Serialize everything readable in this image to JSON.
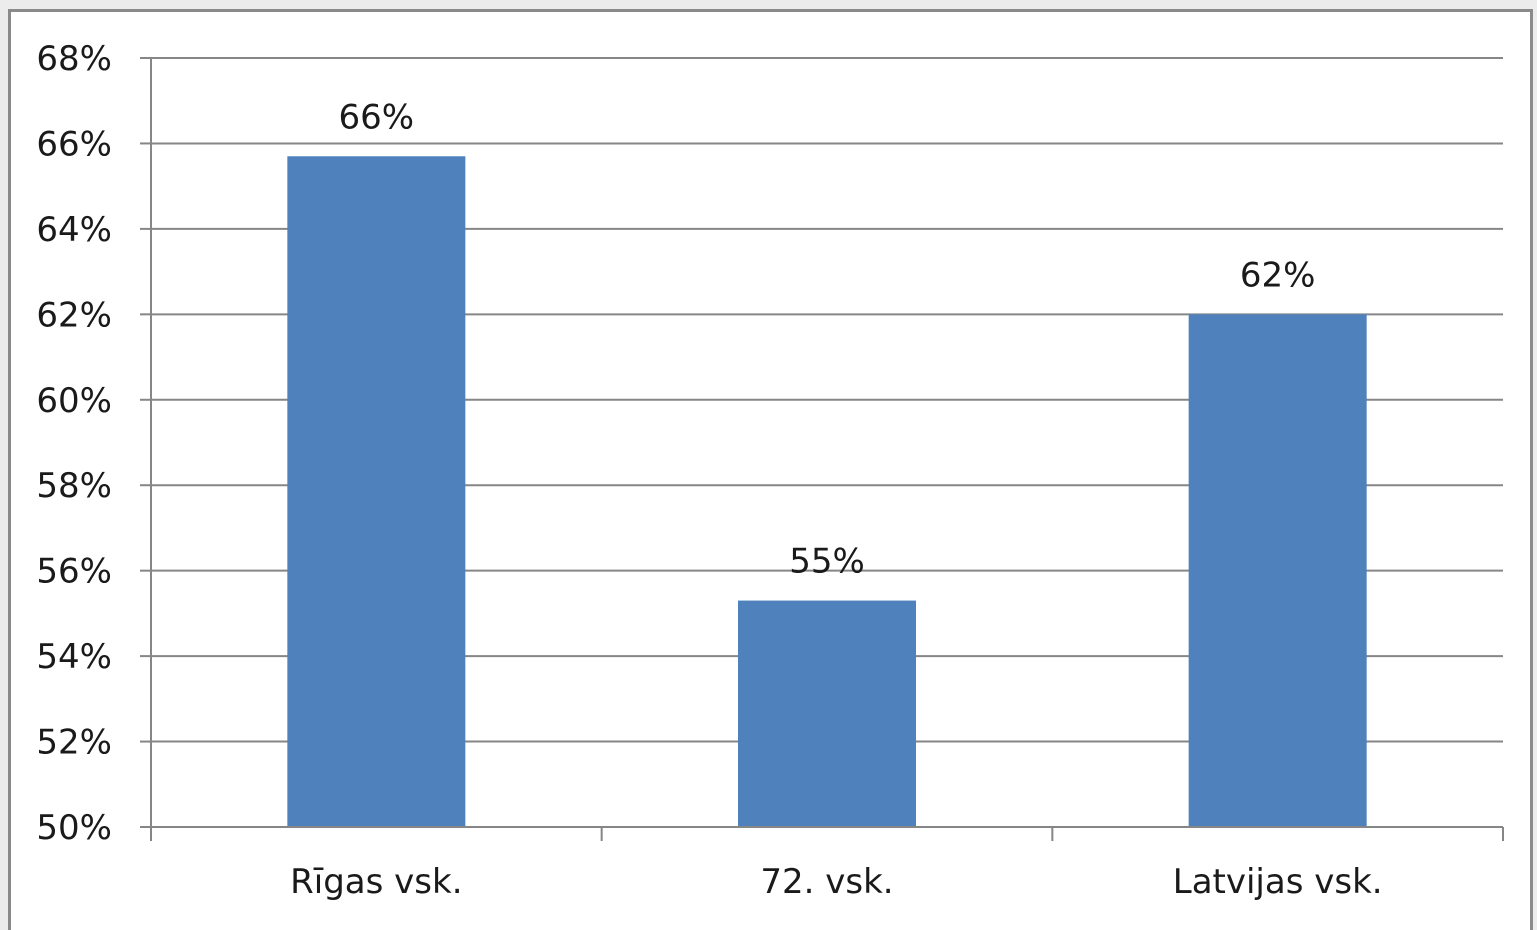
{
  "chart_data": {
    "type": "bar",
    "categories": [
      "Rīgas vsk.",
      "72. vsk.",
      "Latvijas vsk."
    ],
    "values": [
      65.7,
      55.3,
      62.0
    ],
    "data_labels": [
      "66%",
      "55%",
      "62%"
    ],
    "title": "",
    "xlabel": "",
    "ylabel": "",
    "ylim": [
      50,
      68
    ],
    "yticks": [
      50,
      52,
      54,
      56,
      58,
      60,
      62,
      64,
      66,
      68
    ],
    "ytick_labels": [
      "50%",
      "52%",
      "54%",
      "56%",
      "58%",
      "60%",
      "62%",
      "64%",
      "66%",
      "68%"
    ],
    "grid": true,
    "legend": "none",
    "bar_color": "#4f81bd",
    "grid_color": "#868686"
  }
}
